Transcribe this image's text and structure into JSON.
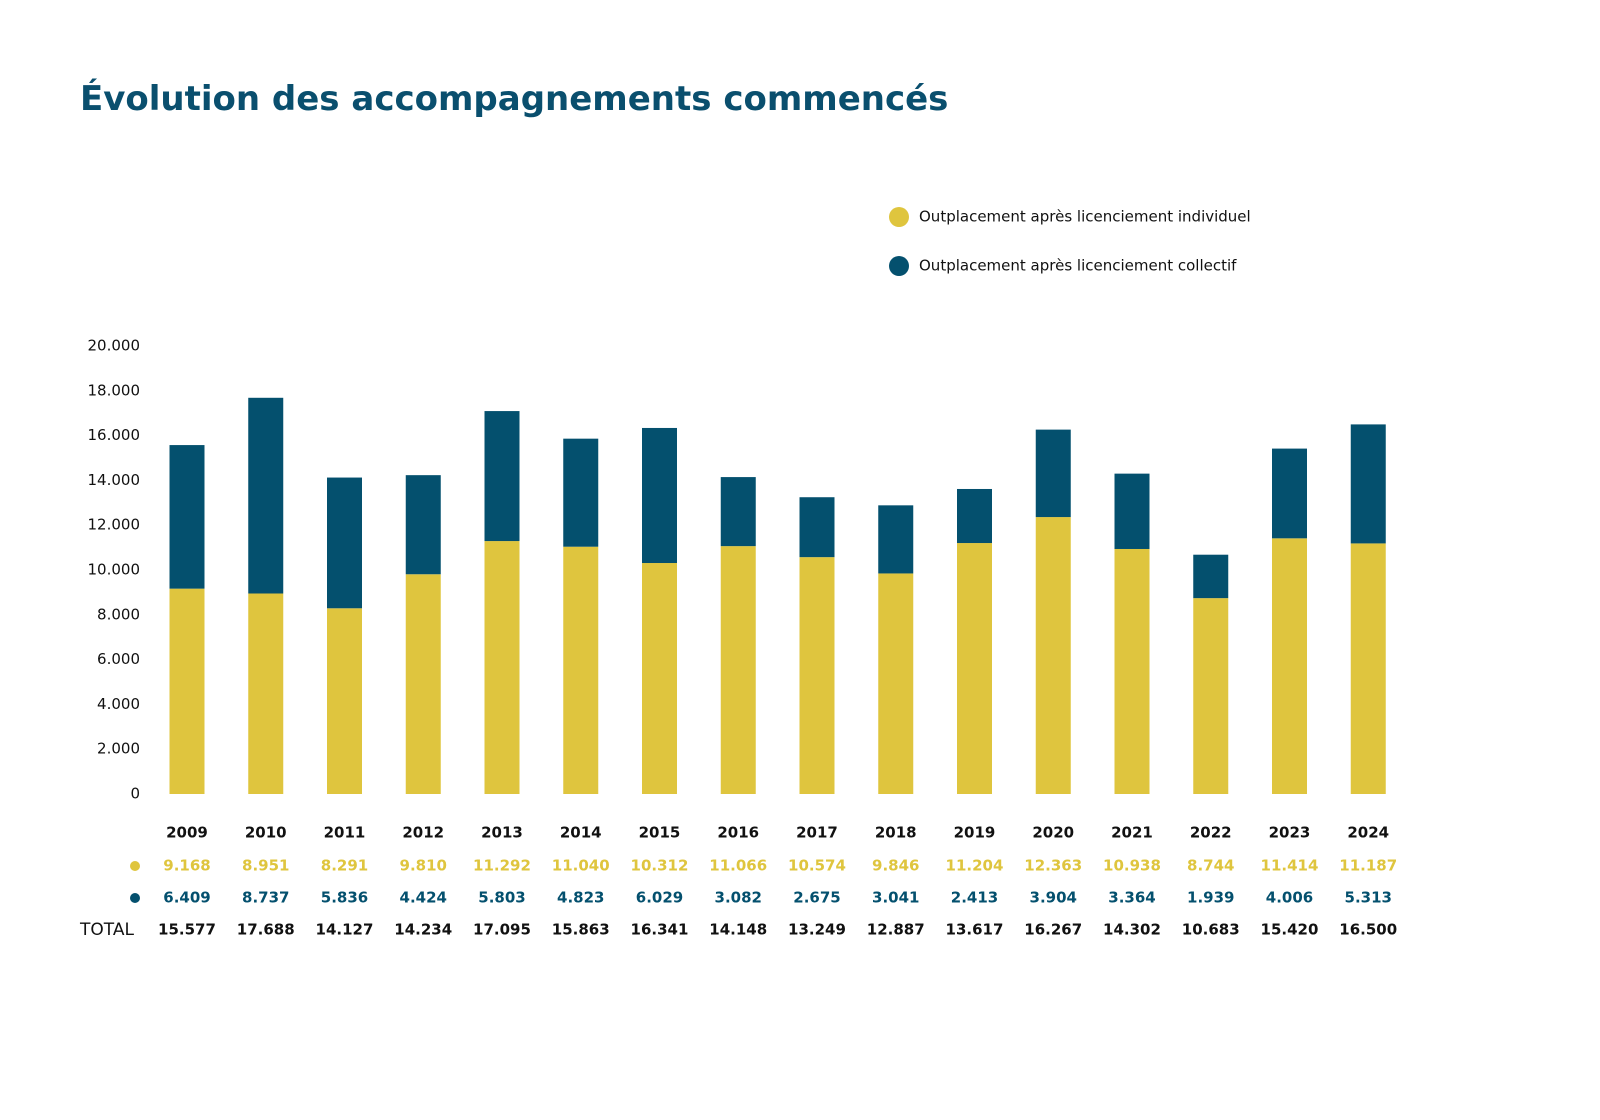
{
  "chart_data": {
    "type": "stacked_bar",
    "title": "Évolution des accompagnements commencés",
    "categories": [
      "2009",
      "2010",
      "2011",
      "2012",
      "2013",
      "2014",
      "2015",
      "2016",
      "2017",
      "2018",
      "2019",
      "2020",
      "2021",
      "2022",
      "2023",
      "2024"
    ],
    "series": [
      {
        "name": "Outplacement après licenciement individuel",
        "color": "#dfc53e",
        "values": [
          9168,
          8951,
          8291,
          9810,
          11292,
          11040,
          10312,
          11066,
          10574,
          9846,
          11204,
          12363,
          10938,
          8744,
          11414,
          11187
        ],
        "value_labels": [
          "9.168",
          "8.951",
          "8.291",
          "9.810",
          "11.292",
          "11.040",
          "10.312",
          "11.066",
          "10.574",
          "9.846",
          "11.204",
          "12.363",
          "10.938",
          "8.744",
          "11.414",
          "11.187"
        ]
      },
      {
        "name": "Outplacement après licenciement collectif",
        "color": "#04506e",
        "values": [
          6409,
          8737,
          5836,
          4424,
          5803,
          4823,
          6029,
          3082,
          2675,
          3041,
          2413,
          3904,
          3364,
          1939,
          4006,
          5313
        ],
        "value_labels": [
          "6.409",
          "8.737",
          "5.836",
          "4.424",
          "5.803",
          "4.823",
          "6.029",
          "3.082",
          "2.675",
          "3.041",
          "2.413",
          "3.904",
          "3.364",
          "1.939",
          "4.006",
          "5.313"
        ]
      }
    ],
    "totals": {
      "label": "TOTAL",
      "values": [
        15577,
        17688,
        14127,
        14234,
        17095,
        15863,
        16341,
        14148,
        13249,
        12887,
        13617,
        16267,
        14302,
        10683,
        15420,
        16500
      ],
      "value_labels": [
        "15.577",
        "17.688",
        "14.127",
        "14.234",
        "17.095",
        "15.863",
        "16.341",
        "14.148",
        "13.249",
        "12.887",
        "13.617",
        "16.267",
        "14.302",
        "10.683",
        "15.420",
        "16.500"
      ]
    },
    "ylim": [
      0,
      20000
    ],
    "yticks": [
      0,
      {
        "value": 2000,
        "label": "2.000"
      },
      {
        "value": 4000,
        "label": "4.000"
      },
      {
        "value": 6000,
        "label": "6.000"
      },
      {
        "value": 8000,
        "label": "8.000"
      },
      {
        "value": 10000,
        "label": "10.000"
      },
      {
        "value": 12000,
        "label": "12.000"
      },
      {
        "value": 14000,
        "label": "14.000"
      },
      {
        "value": 16000,
        "label": "16.000"
      },
      {
        "value": 18000,
        "label": "18.000"
      },
      {
        "value": 20000,
        "label": "20.000"
      }
    ],
    "grid": false
  }
}
